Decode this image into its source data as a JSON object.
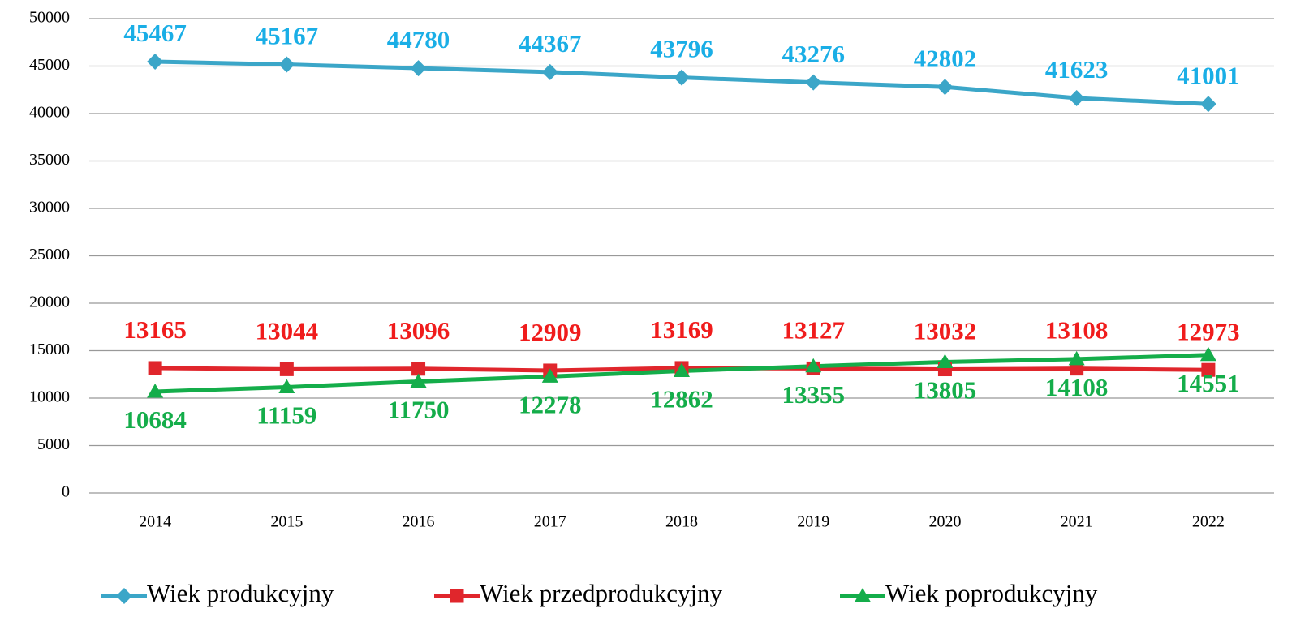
{
  "chart_data": {
    "type": "line",
    "categories": [
      "2014",
      "2015",
      "2016",
      "2017",
      "2018",
      "2019",
      "2020",
      "2021",
      "2022"
    ],
    "series": [
      {
        "name": "Wiek produkcyjny",
        "color": "#3ba6c8",
        "label_color": "#1aaee6",
        "marker": "diamond",
        "label_position": "above",
        "values": [
          45467,
          45167,
          44780,
          44367,
          43796,
          43276,
          42802,
          41623,
          41001
        ]
      },
      {
        "name": "Wiek przedprodukcyjny",
        "color": "#e0262c",
        "label_color": "#f01c1c",
        "marker": "square",
        "label_position": "above",
        "values": [
          13165,
          13044,
          13096,
          12909,
          13169,
          13127,
          13032,
          13108,
          12973
        ]
      },
      {
        "name": "Wiek poprodukcyjny",
        "color": "#14ad4a",
        "label_color": "#14ad4a",
        "marker": "triangle",
        "label_position": "below",
        "values": [
          10684,
          11159,
          11750,
          12278,
          12862,
          13355,
          13805,
          14108,
          14551
        ]
      }
    ],
    "ylim": [
      0,
      50000
    ],
    "yticks": [
      0,
      5000,
      10000,
      15000,
      20000,
      25000,
      30000,
      35000,
      40000,
      45000,
      50000
    ],
    "grid": true,
    "legend": "bottom"
  }
}
